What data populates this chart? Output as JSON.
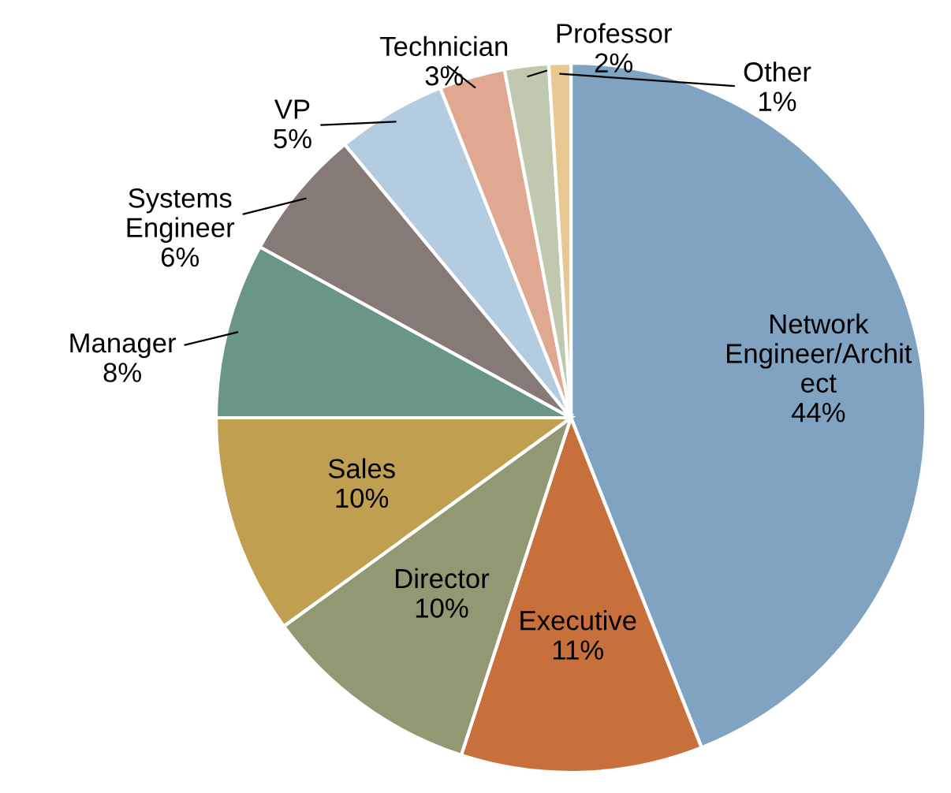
{
  "chart_data": {
    "type": "pie",
    "categories": [
      "Network\nEngineer/Archit\nect",
      "Executive",
      "Director",
      "Sales",
      "Manager",
      "Systems\nEngineer",
      "VP",
      "Technician",
      "Professor",
      "Other"
    ],
    "values": [
      44,
      11,
      10,
      10,
      8,
      6,
      5,
      3,
      2,
      1
    ],
    "colors": [
      "#7fa3c0",
      "#c8703c",
      "#929872",
      "#c0a050",
      "#6a9688",
      "#857a75",
      "#b4cce0",
      "#e0a890",
      "#c0c8b0",
      "#e8c890"
    ],
    "value_labels": [
      "44%",
      "11%",
      "10%",
      "10%",
      "8%",
      "6%",
      "5%",
      "3%",
      "2%",
      "1%"
    ]
  }
}
